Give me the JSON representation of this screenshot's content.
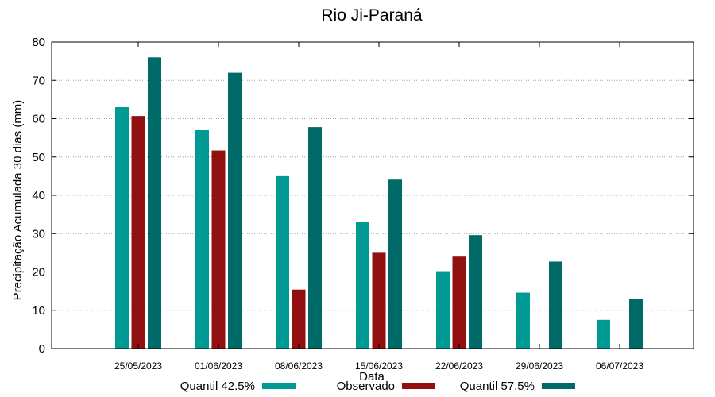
{
  "chart_data": {
    "type": "bar",
    "title": "Rio Ji-Paraná",
    "xlabel": "Data",
    "ylabel": "Precipitação Acumulada 30 dias (mm)",
    "ylim": [
      0,
      80
    ],
    "yticks": [
      0,
      10,
      20,
      30,
      40,
      50,
      60,
      70,
      80
    ],
    "grid": true,
    "legend_position": "bottom",
    "categories": [
      "25/05/2023",
      "01/06/2023",
      "08/06/2023",
      "15/06/2023",
      "22/06/2023",
      "29/06/2023",
      "06/07/2023"
    ],
    "series": [
      {
        "name": "Quantil 42.5%",
        "color": "#009a94",
        "values": [
          63,
          57,
          45,
          33,
          20.2,
          14.6,
          7.5
        ]
      },
      {
        "name": "Observado",
        "color": "#921010",
        "values": [
          60.7,
          51.7,
          15.4,
          25,
          24,
          null,
          null
        ]
      },
      {
        "name": "Quantil 57.5%",
        "color": "#006a68",
        "values": [
          76,
          72,
          57.8,
          44.1,
          29.6,
          22.7,
          12.9
        ]
      }
    ]
  }
}
